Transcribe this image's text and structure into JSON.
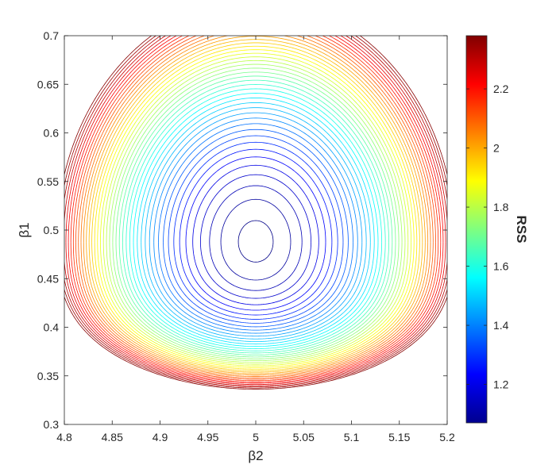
{
  "chart_data": {
    "type": "contour",
    "xlabel": "β2",
    "ylabel": "β1",
    "xlim": [
      4.8,
      5.2
    ],
    "ylim": [
      0.3,
      0.7
    ],
    "x_ticks": [
      "4.8",
      "4.85",
      "4.9",
      "4.95",
      "5",
      "5.05",
      "5.1",
      "5.15",
      "5.2"
    ],
    "y_ticks": [
      "0.3",
      "0.35",
      "0.4",
      "0.45",
      "0.5",
      "0.55",
      "0.6",
      "0.65",
      "0.7"
    ],
    "minimum": {
      "x": 5.0,
      "y": 0.488,
      "value": 1.07
    },
    "levels": {
      "start": 1.08,
      "step": 0.03,
      "end": 2.37
    },
    "colorbar": {
      "label": "RSS",
      "colormap": "jet",
      "range": [
        1.07,
        2.38
      ],
      "ticks": [
        "1.2",
        "1.4",
        "1.6",
        "1.8",
        "2",
        "2.2"
      ]
    },
    "grid": false
  }
}
